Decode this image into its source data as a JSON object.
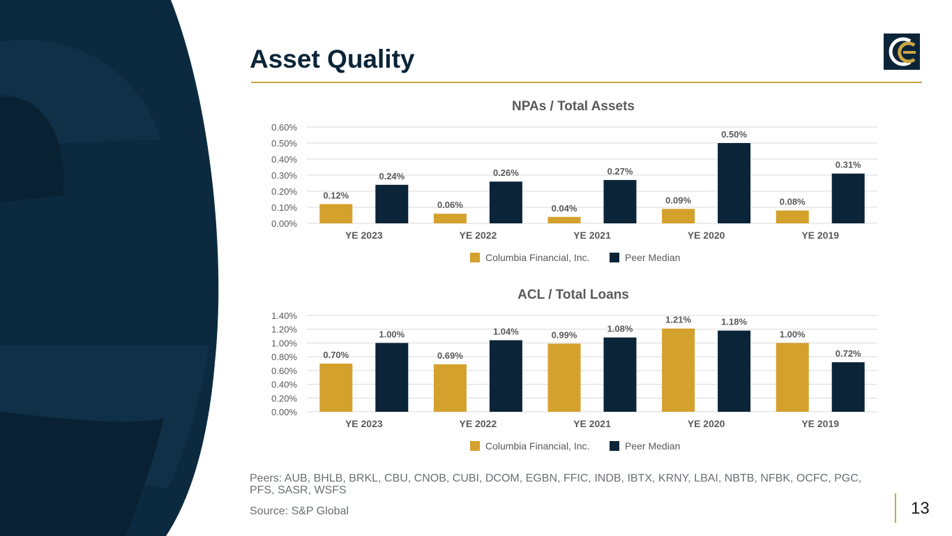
{
  "slide": {
    "title": "Asset Quality",
    "peers_note": "Peers: AUB, BHLB, BRKL, CBU, CNOB, CUBI, DCOM, EGBN, FFIC, INDB, IBTX, KRNY, LBAI, NBTB, NFBK, OCFC, PGC, PFS, SASR, WSFS",
    "source": "Source: S&P Global",
    "page_number": "13"
  },
  "colors": {
    "navy": "#0b2438",
    "gold": "#d4a12d",
    "axis_text": "#595959",
    "grid": "#d9d9d9"
  },
  "chart_data": [
    {
      "type": "bar",
      "title": "NPAs / Total Assets",
      "categories": [
        "YE 2023",
        "YE 2022",
        "YE 2021",
        "YE 2020",
        "YE 2019"
      ],
      "series": [
        {
          "name": "Columbia Financial, Inc.",
          "values": [
            0.12,
            0.06,
            0.04,
            0.09,
            0.08
          ],
          "labels": [
            "0.12%",
            "0.06%",
            "0.04%",
            "0.09%",
            "0.08%"
          ]
        },
        {
          "name": "Peer Median",
          "values": [
            0.24,
            0.26,
            0.27,
            0.5,
            0.31
          ],
          "labels": [
            "0.24%",
            "0.26%",
            "0.27%",
            "0.50%",
            "0.31%"
          ]
        }
      ],
      "yticks": [
        "0.00%",
        "0.10%",
        "0.20%",
        "0.30%",
        "0.40%",
        "0.50%",
        "0.60%"
      ],
      "ylim": [
        0,
        0.6
      ],
      "legend": "bottom"
    },
    {
      "type": "bar",
      "title": "ACL / Total Loans",
      "categories": [
        "YE 2023",
        "YE 2022",
        "YE 2021",
        "YE 2020",
        "YE 2019"
      ],
      "series": [
        {
          "name": "Columbia Financial, Inc.",
          "values": [
            0.7,
            0.69,
            0.99,
            1.21,
            1.0
          ],
          "labels": [
            "0.70%",
            "0.69%",
            "0.99%",
            "1.21%",
            "1.00%"
          ]
        },
        {
          "name": "Peer Median",
          "values": [
            1.0,
            1.04,
            1.08,
            1.18,
            0.72
          ],
          "labels": [
            "1.00%",
            "1.04%",
            "1.08%",
            "1.18%",
            "0.72%"
          ]
        }
      ],
      "yticks": [
        "0.00%",
        "0.20%",
        "0.40%",
        "0.60%",
        "0.80%",
        "1.00%",
        "1.20%",
        "1.40%"
      ],
      "ylim": [
        0,
        1.4
      ],
      "legend": "bottom"
    }
  ]
}
